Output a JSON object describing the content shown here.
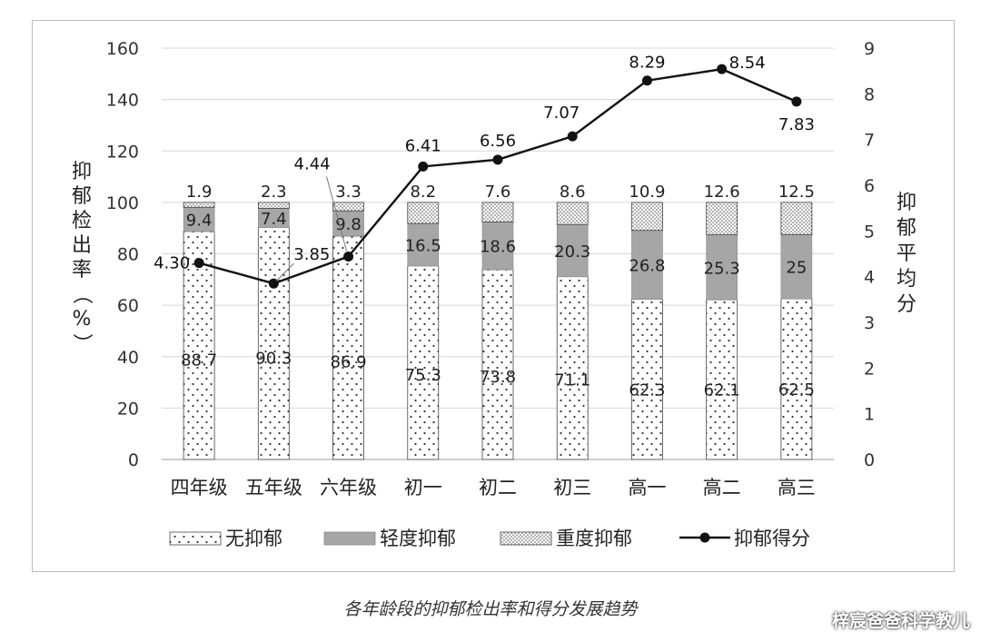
{
  "chart_data": {
    "type": "bar",
    "stacked": true,
    "categories": [
      "四年级",
      "五年级",
      "六年级",
      "初一",
      "初二",
      "初三",
      "高一",
      "高二",
      "高三"
    ],
    "series": [
      {
        "name": "无抑郁",
        "type": "bar",
        "axis": "left",
        "pattern": "sparse-dots",
        "values": [
          88.7,
          90.3,
          86.9,
          75.3,
          73.8,
          71.1,
          62.3,
          62.1,
          62.5
        ]
      },
      {
        "name": "轻度抑郁",
        "type": "bar",
        "axis": "left",
        "color": "#a6a6a6",
        "values": [
          9.4,
          7.4,
          9.8,
          16.5,
          18.6,
          20.3,
          26.8,
          25.3,
          25
        ]
      },
      {
        "name": "重度抑郁",
        "type": "bar",
        "axis": "left",
        "pattern": "dense-dots",
        "values": [
          1.9,
          2.3,
          3.3,
          8.2,
          7.6,
          8.6,
          10.9,
          12.6,
          12.5
        ]
      },
      {
        "name": "抑郁得分",
        "type": "line",
        "axis": "right",
        "color": "#111111",
        "values": [
          4.3,
          3.85,
          4.44,
          6.41,
          6.56,
          7.07,
          8.29,
          8.54,
          7.83
        ],
        "labels": [
          "4.30",
          "3.85",
          "4.44",
          "6.41",
          "6.56",
          "7.07",
          "8.29",
          "8.54",
          "7.83"
        ]
      }
    ],
    "ylabel_left": "抑郁检出率（%）",
    "ylabel_right": "抑郁平均分",
    "ylim_left": [
      0,
      160
    ],
    "yticks_left": [
      0,
      20,
      40,
      60,
      80,
      100,
      120,
      140,
      160
    ],
    "ylim_right": [
      0,
      9
    ],
    "yticks_right": [
      0,
      1,
      2,
      3,
      4,
      5,
      6,
      7,
      8,
      9
    ],
    "grid": "horizontal",
    "legend_position": "bottom"
  },
  "caption": "各年龄段的抑郁检出率和得分发展趋势",
  "watermark": "梓宸爸爸科学教儿"
}
